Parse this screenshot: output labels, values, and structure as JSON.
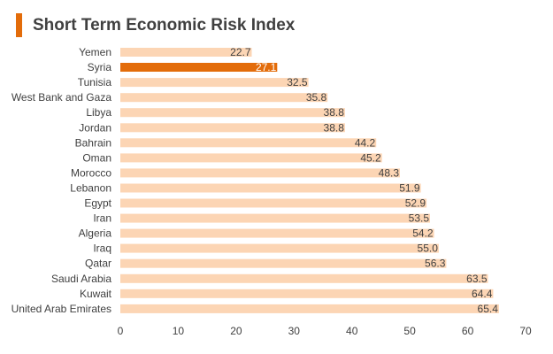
{
  "chart_data": {
    "type": "bar",
    "orientation": "horizontal",
    "title": "Short Term Economic Risk Index",
    "xlabel": "",
    "ylabel": "",
    "xlim": [
      0,
      70
    ],
    "ticks": [
      0,
      10,
      20,
      30,
      40,
      50,
      60,
      70
    ],
    "grid": false,
    "legend": "none",
    "categories": [
      "Yemen",
      "Syria",
      "Tunisia",
      "West Bank and Gaza",
      "Libya",
      "Jordan",
      "Bahrain",
      "Oman",
      "Morocco",
      "Lebanon",
      "Egypt",
      "Iran",
      "Algeria",
      "Iraq",
      "Qatar",
      "Saudi Arabia",
      "Kuwait",
      "United Arab Emirates"
    ],
    "values": [
      22.7,
      27.1,
      32.5,
      35.8,
      38.8,
      38.8,
      44.2,
      45.2,
      48.3,
      51.9,
      52.9,
      53.5,
      54.2,
      55.0,
      56.3,
      63.5,
      64.4,
      65.4
    ],
    "value_labels": [
      "22.7",
      "27.1",
      "32.5",
      "35.8",
      "38.8",
      "38.8",
      "44.2",
      "45.2",
      "48.3",
      "51.9",
      "52.9",
      "53.5",
      "54.2",
      "55.0",
      "56.3",
      "63.5",
      "64.4",
      "65.4"
    ],
    "highlight_category": "Syria",
    "colors": {
      "bar": "#fcd5b4",
      "highlight": "#e36c0a",
      "accent": "#e36c0a",
      "text": "#404040",
      "highlight_text": "#ffffff",
      "axis": "#d9d9d9"
    }
  }
}
